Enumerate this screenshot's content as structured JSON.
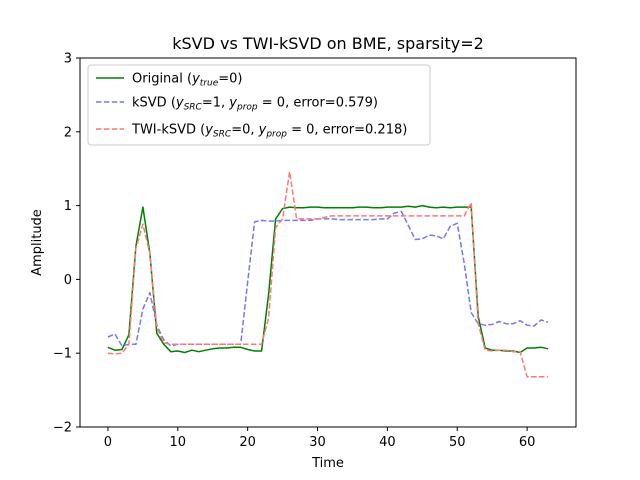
{
  "chart_data": {
    "type": "line",
    "title": "kSVD vs TWI-kSVD on BME, sparsity=2",
    "xlabel": "Time",
    "ylabel": "Amplitude",
    "xlim": [
      -4,
      67
    ],
    "ylim": [
      -2,
      3
    ],
    "xticks": [
      0,
      10,
      20,
      30,
      40,
      50,
      60
    ],
    "yticks": [
      -2,
      -1,
      0,
      1,
      2,
      3
    ],
    "grid": false,
    "legend_position": "top-left",
    "x": [
      0,
      1,
      2,
      3,
      4,
      5,
      6,
      7,
      8,
      9,
      10,
      11,
      12,
      13,
      14,
      15,
      16,
      17,
      18,
      19,
      20,
      21,
      22,
      23,
      24,
      25,
      26,
      27,
      28,
      29,
      30,
      31,
      32,
      33,
      34,
      35,
      36,
      37,
      38,
      39,
      40,
      41,
      42,
      43,
      44,
      45,
      46,
      47,
      48,
      49,
      50,
      51,
      52,
      53,
      54,
      55,
      56,
      57,
      58,
      59,
      60,
      61,
      62,
      63
    ],
    "series": [
      {
        "name": "Original ($y_{true}$=0)",
        "legend": {
          "pre": "Original (",
          "sym": "y",
          "sub": "true",
          "post": "=0)"
        },
        "color": "#008000",
        "style": "solid",
        "values": [
          -0.92,
          -0.96,
          -0.95,
          -0.75,
          0.45,
          0.98,
          0.35,
          -0.73,
          -0.88,
          -0.98,
          -0.97,
          -0.99,
          -0.96,
          -0.98,
          -0.96,
          -0.94,
          -0.93,
          -0.93,
          -0.92,
          -0.92,
          -0.95,
          -0.97,
          -0.97,
          -0.2,
          0.82,
          0.96,
          0.98,
          0.97,
          0.97,
          0.98,
          0.98,
          0.97,
          0.97,
          0.97,
          0.97,
          0.97,
          0.98,
          0.98,
          0.97,
          0.97,
          0.98,
          0.98,
          0.98,
          0.99,
          0.98,
          1.0,
          0.98,
          0.97,
          0.98,
          0.97,
          0.98,
          0.98,
          0.98,
          -0.5,
          -0.93,
          -0.96,
          -0.96,
          -0.97,
          -0.97,
          -0.99,
          -0.93,
          -0.93,
          -0.92,
          -0.94
        ]
      },
      {
        "name": "kSVD ($y_{SRC}$=1, $y_{prop}=0$, error=0.579)",
        "legend": {
          "pre": "kSVD (",
          "sym": "y",
          "sub": "SRC",
          "mid": "=1, ",
          "sym2": "y",
          "sub2": "prop",
          "mid2": " = 0, error=0.579)"
        },
        "color": "#7777ee",
        "style": "dashed",
        "values": [
          -0.78,
          -0.74,
          -0.9,
          -0.88,
          -0.88,
          -0.4,
          -0.18,
          -0.62,
          -0.82,
          -0.9,
          -0.88,
          -0.88,
          -0.88,
          -0.88,
          -0.88,
          -0.88,
          -0.88,
          -0.88,
          -0.88,
          -0.88,
          -0.03,
          0.78,
          0.8,
          0.79,
          0.79,
          0.8,
          0.8,
          0.8,
          0.8,
          0.8,
          0.82,
          0.82,
          0.82,
          0.81,
          0.81,
          0.81,
          0.81,
          0.81,
          0.81,
          0.82,
          0.82,
          0.9,
          0.92,
          0.73,
          0.54,
          0.55,
          0.6,
          0.59,
          0.55,
          0.72,
          0.76,
          0.22,
          -0.45,
          -0.6,
          -0.62,
          -0.61,
          -0.57,
          -0.6,
          -0.6,
          -0.56,
          -0.62,
          -0.63,
          -0.55,
          -0.58
        ]
      },
      {
        "name": "TWI-kSVD ($y_{SRC}$=0, $y_{prop}=0$, error=0.218)",
        "legend": {
          "pre": "TWI-kSVD (",
          "sym": "y",
          "sub": "SRC",
          "mid": "=0, ",
          "sym2": "y",
          "sub2": "prop",
          "mid2": " = 0, error=0.218)"
        },
        "color": "#ff7777",
        "style": "dashed",
        "values": [
          -1.0,
          -1.01,
          -1.0,
          -0.88,
          0.42,
          0.75,
          0.35,
          -0.65,
          -0.86,
          -0.88,
          -0.88,
          -0.88,
          -0.88,
          -0.88,
          -0.88,
          -0.88,
          -0.88,
          -0.88,
          -0.88,
          -0.88,
          -0.88,
          -0.88,
          -0.88,
          -0.52,
          0.7,
          0.82,
          1.46,
          0.82,
          0.82,
          0.82,
          0.82,
          0.84,
          0.86,
          0.86,
          0.86,
          0.86,
          0.86,
          0.86,
          0.86,
          0.86,
          0.86,
          0.86,
          0.86,
          0.86,
          0.86,
          0.86,
          0.86,
          0.86,
          0.86,
          0.86,
          0.86,
          0.86,
          1.04,
          -0.6,
          -0.96,
          -0.97,
          -0.96,
          -0.96,
          -0.98,
          -0.98,
          -1.32,
          -1.32,
          -1.32,
          -1.32
        ]
      }
    ]
  }
}
